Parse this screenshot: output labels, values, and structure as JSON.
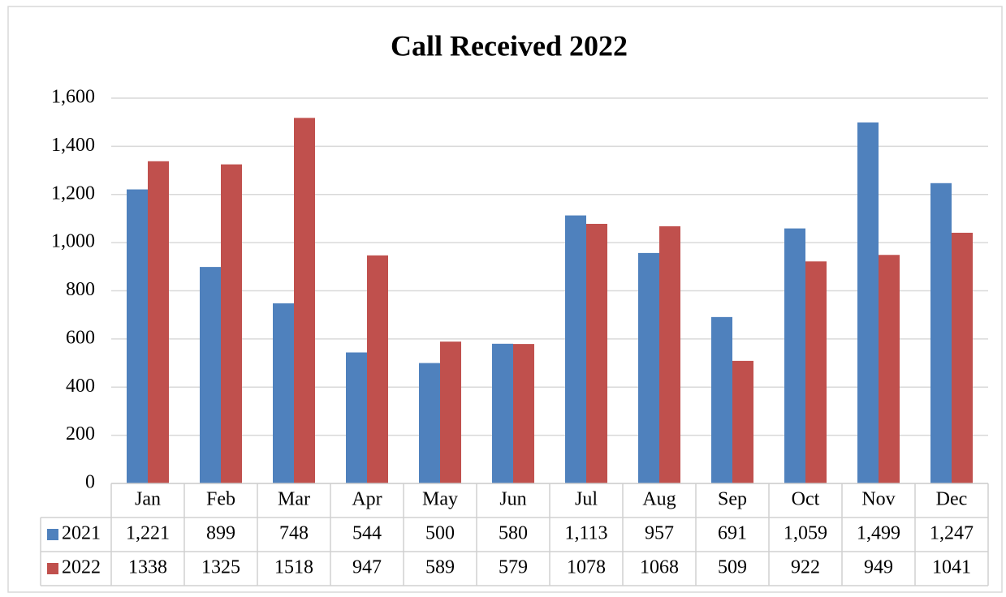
{
  "chart_data": {
    "type": "bar",
    "title": "Call Received 2022",
    "categories": [
      "Jan",
      "Feb",
      "Mar",
      "Apr",
      "May",
      "Jun",
      "Jul",
      "Aug",
      "Sep",
      "Oct",
      "Nov",
      "Dec"
    ],
    "series": [
      {
        "name": "2021",
        "color": "#4f81bd",
        "values": [
          1221,
          899,
          748,
          544,
          500,
          580,
          1113,
          957,
          691,
          1059,
          1499,
          1247
        ],
        "value_labels": [
          "1,221",
          "899",
          "748",
          "544",
          "500",
          "580",
          "1,113",
          "957",
          "691",
          "1,059",
          "1,499",
          "1,247"
        ]
      },
      {
        "name": "2022",
        "color": "#c0504d",
        "values": [
          1338,
          1325,
          1518,
          947,
          589,
          579,
          1078,
          1068,
          509,
          922,
          949,
          1041
        ]
      }
    ],
    "ylim": [
      0,
      1600
    ],
    "yticks": [
      0,
      200,
      400,
      600,
      800,
      {
        "value": 1000,
        "label": "1,000"
      },
      {
        "value": 1200,
        "label": "1,200"
      },
      {
        "value": 1400,
        "label": "1,400"
      },
      {
        "value": 1600,
        "label": "1,600"
      }
    ],
    "grid": true
  }
}
